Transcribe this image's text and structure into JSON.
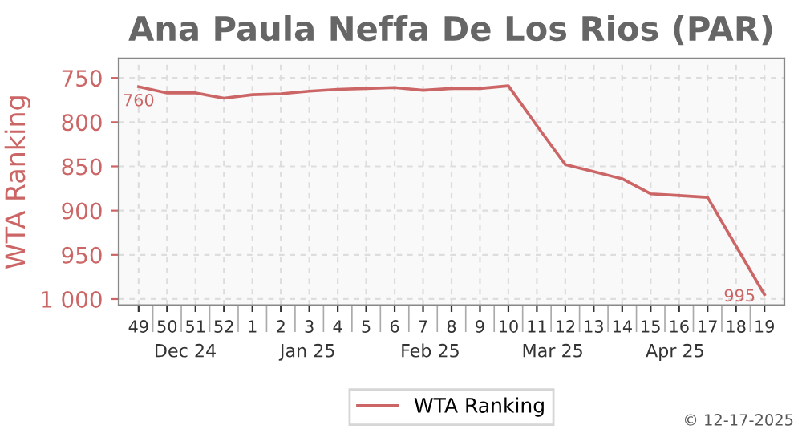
{
  "chart_data": {
    "type": "line",
    "title": "Ana Paula Neffa De Los Rios (PAR)",
    "ylabel": "WTA Ranking",
    "categories": [
      "49",
      "50",
      "51",
      "52",
      "1",
      "2",
      "3",
      "4",
      "5",
      "6",
      "7",
      "8",
      "9",
      "10",
      "11",
      "12",
      "13",
      "14",
      "15",
      "16",
      "17",
      "18",
      "19"
    ],
    "series": [
      {
        "name": "WTA Ranking",
        "color": "#cc6666",
        "values": [
          760,
          767,
          767,
          773,
          769,
          768,
          765,
          763,
          762,
          761,
          764,
          762,
          762,
          759,
          804,
          848,
          856,
          864,
          881,
          883,
          885,
          940,
          995
        ],
        "value_labels": [
          "760",
          null,
          null,
          null,
          null,
          null,
          null,
          null,
          null,
          null,
          null,
          null,
          null,
          null,
          null,
          null,
          null,
          null,
          null,
          null,
          null,
          null,
          "995"
        ]
      }
    ],
    "ylim": [
      1007,
      728
    ],
    "yticks": [
      750,
      800,
      850,
      900,
      950,
      {
        "value": 1000,
        "label": "1 000"
      }
    ],
    "grid": true,
    "legend": "bottom",
    "marker": "none",
    "line_style": "solid",
    "annotations": [
      "Dec 24",
      "Jan 25",
      "Feb 25",
      "Mar 25",
      "Apr 25",
      "© 12-17-2025"
    ]
  }
}
